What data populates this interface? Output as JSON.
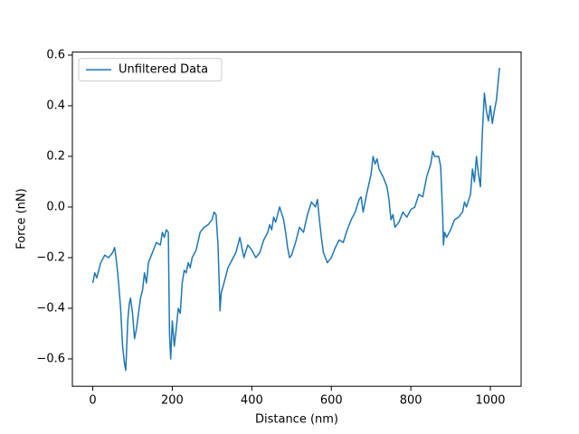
{
  "chart_data": {
    "type": "line",
    "xlabel": "Distance (nm)",
    "ylabel": "Force (nN)",
    "x": [
      0,
      5,
      10,
      20,
      30,
      40,
      50,
      55,
      60,
      65,
      70,
      75,
      80,
      83,
      88,
      92,
      95,
      100,
      105,
      110,
      115,
      120,
      125,
      130,
      135,
      140,
      150,
      160,
      170,
      175,
      180,
      185,
      190,
      193,
      196,
      200,
      205,
      210,
      215,
      220,
      225,
      230,
      235,
      240,
      245,
      250,
      260,
      270,
      280,
      290,
      300,
      305,
      310,
      315,
      318,
      320,
      323,
      330,
      340,
      350,
      360,
      370,
      380,
      390,
      400,
      410,
      420,
      430,
      440,
      445,
      450,
      455,
      460,
      465,
      470,
      480,
      485,
      490,
      495,
      500,
      510,
      520,
      530,
      540,
      550,
      560,
      565,
      570,
      575,
      580,
      590,
      600,
      610,
      620,
      630,
      640,
      650,
      660,
      670,
      675,
      680,
      690,
      700,
      705,
      710,
      715,
      720,
      730,
      740,
      745,
      750,
      755,
      760,
      770,
      780,
      790,
      800,
      810,
      820,
      830,
      840,
      850,
      855,
      860,
      870,
      875,
      880,
      882,
      885,
      890,
      900,
      910,
      920,
      930,
      935,
      940,
      950,
      955,
      960,
      965,
      970,
      975,
      980,
      985,
      990,
      995,
      1000,
      1005,
      1010,
      1015,
      1020,
      1023
    ],
    "series": [
      {
        "name": "Unfiltered Data",
        "color": "#1f77b4",
        "values": [
          -0.3,
          -0.26,
          -0.28,
          -0.22,
          -0.19,
          -0.2,
          -0.18,
          -0.16,
          -0.22,
          -0.3,
          -0.4,
          -0.55,
          -0.62,
          -0.645,
          -0.45,
          -0.38,
          -0.36,
          -0.42,
          -0.52,
          -0.48,
          -0.42,
          -0.36,
          -0.33,
          -0.26,
          -0.3,
          -0.22,
          -0.18,
          -0.14,
          -0.15,
          -0.1,
          -0.12,
          -0.09,
          -0.1,
          -0.5,
          -0.6,
          -0.45,
          -0.55,
          -0.48,
          -0.4,
          -0.42,
          -0.3,
          -0.25,
          -0.26,
          -0.22,
          -0.24,
          -0.2,
          -0.17,
          -0.1,
          -0.08,
          -0.07,
          -0.05,
          -0.02,
          -0.03,
          -0.15,
          -0.3,
          -0.41,
          -0.34,
          -0.3,
          -0.24,
          -0.21,
          -0.18,
          -0.12,
          -0.2,
          -0.15,
          -0.17,
          -0.2,
          -0.18,
          -0.13,
          -0.1,
          -0.07,
          -0.09,
          -0.04,
          -0.06,
          -0.03,
          0.0,
          -0.05,
          -0.1,
          -0.16,
          -0.2,
          -0.19,
          -0.14,
          -0.08,
          -0.1,
          -0.03,
          0.02,
          0.0,
          0.03,
          -0.05,
          -0.12,
          -0.18,
          -0.22,
          -0.2,
          -0.16,
          -0.13,
          -0.14,
          -0.09,
          -0.05,
          -0.02,
          0.03,
          0.04,
          -0.02,
          0.06,
          0.13,
          0.2,
          0.17,
          0.19,
          0.15,
          0.12,
          0.08,
          0.03,
          -0.05,
          -0.03,
          -0.08,
          -0.06,
          -0.02,
          -0.04,
          -0.01,
          0.0,
          0.05,
          0.04,
          0.12,
          0.17,
          0.22,
          0.2,
          0.2,
          0.16,
          -0.03,
          -0.15,
          -0.1,
          -0.12,
          -0.09,
          -0.05,
          -0.04,
          -0.02,
          0.02,
          0.0,
          0.05,
          0.15,
          0.1,
          0.2,
          0.13,
          0.08,
          0.3,
          0.45,
          0.38,
          0.34,
          0.4,
          0.33,
          0.38,
          0.42,
          0.5,
          0.55
        ]
      }
    ],
    "xlim": [
      -51.3,
      1077.3
    ],
    "ylim": [
      -0.708,
      0.612
    ],
    "xticks": [
      0,
      200,
      400,
      600,
      800,
      1000
    ],
    "yticks": [
      {
        "value": -0.6,
        "label": "−0.6"
      },
      {
        "value": -0.4,
        "label": "−0.4"
      },
      {
        "value": -0.2,
        "label": "−0.2"
      },
      {
        "value": 0,
        "label": "0.0"
      },
      0.2,
      0.4,
      0.6
    ],
    "legend": "upper left",
    "grid": false
  }
}
